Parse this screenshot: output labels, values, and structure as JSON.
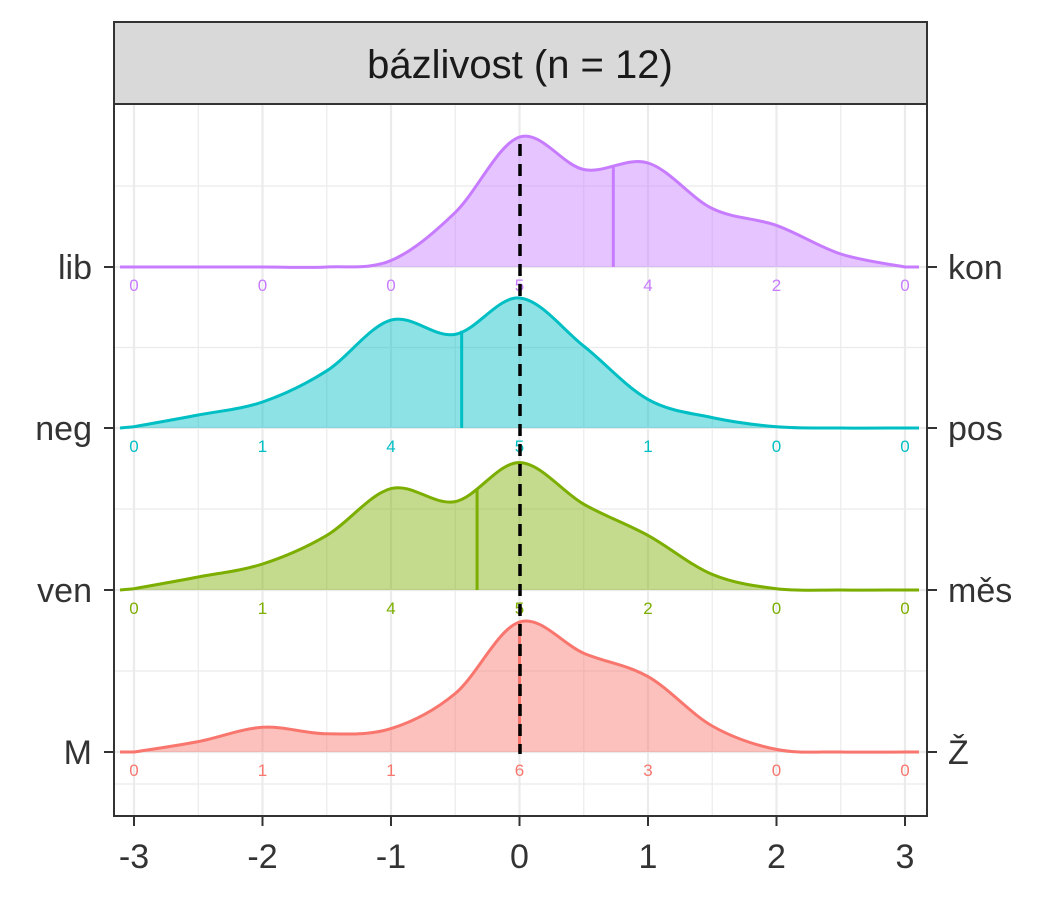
{
  "chart_data": {
    "type": "ridgeline",
    "title": "bázlivost (n = 12)",
    "x_ticks": [
      "-3",
      "-2",
      "-1",
      "0",
      "1",
      "2",
      "3"
    ],
    "xlim": [
      -3,
      3
    ],
    "grid": true,
    "x": [
      -3,
      -2,
      -1,
      0,
      1,
      2,
      3
    ],
    "series": [
      {
        "left_label": "M",
        "right_label": "Ž",
        "color": "#F8766D",
        "mean": 0,
        "counts": [
          "0",
          "1",
          "1",
          "6",
          "3",
          "0",
          "0"
        ],
        "density_x": [
          -3,
          -2.5,
          -2,
          -1.5,
          -1,
          -0.5,
          0,
          0.5,
          1,
          1.5,
          2,
          2.5,
          3
        ],
        "density_y": [
          0.0,
          0.08,
          0.19,
          0.14,
          0.18,
          0.45,
          1.0,
          0.76,
          0.58,
          0.2,
          0.02,
          0.0,
          0.0
        ]
      },
      {
        "left_label": "ven",
        "right_label": "měs",
        "color": "#7CAE00",
        "mean": -0.33,
        "counts": [
          "0",
          "1",
          "4",
          "5",
          "2",
          "0",
          "0"
        ],
        "density_x": [
          -3,
          -2.5,
          -2,
          -1.5,
          -1,
          -0.5,
          0,
          0.5,
          1,
          1.5,
          2,
          2.5,
          3
        ],
        "density_y": [
          0.01,
          0.1,
          0.2,
          0.42,
          0.78,
          0.68,
          0.98,
          0.66,
          0.42,
          0.12,
          0.01,
          0.0,
          0.0
        ]
      },
      {
        "left_label": "neg",
        "right_label": "pos",
        "color": "#00BFC4",
        "mean": -0.45,
        "counts": [
          "0",
          "1",
          "4",
          "5",
          "1",
          "0",
          "0"
        ],
        "density_x": [
          -3,
          -2.5,
          -2,
          -1.5,
          -1,
          -0.5,
          0,
          0.5,
          1,
          1.5,
          2,
          2.5,
          3
        ],
        "density_y": [
          0.01,
          0.1,
          0.2,
          0.44,
          0.83,
          0.72,
          1.0,
          0.63,
          0.22,
          0.08,
          0.01,
          0.0,
          0.0
        ]
      },
      {
        "left_label": "lib",
        "right_label": "kon",
        "color": "#C77CFF",
        "mean": 0.73,
        "counts": [
          "0",
          "0",
          "0",
          "5",
          "4",
          "2",
          "0"
        ],
        "density_x": [
          -3,
          -2.5,
          -2,
          -1.5,
          -1,
          -0.5,
          0,
          0.5,
          1,
          1.5,
          2,
          2.5,
          3
        ],
        "density_y": [
          0.0,
          0.0,
          0.0,
          0.0,
          0.05,
          0.42,
          1.0,
          0.75,
          0.8,
          0.45,
          0.32,
          0.1,
          0.0
        ]
      }
    ]
  }
}
